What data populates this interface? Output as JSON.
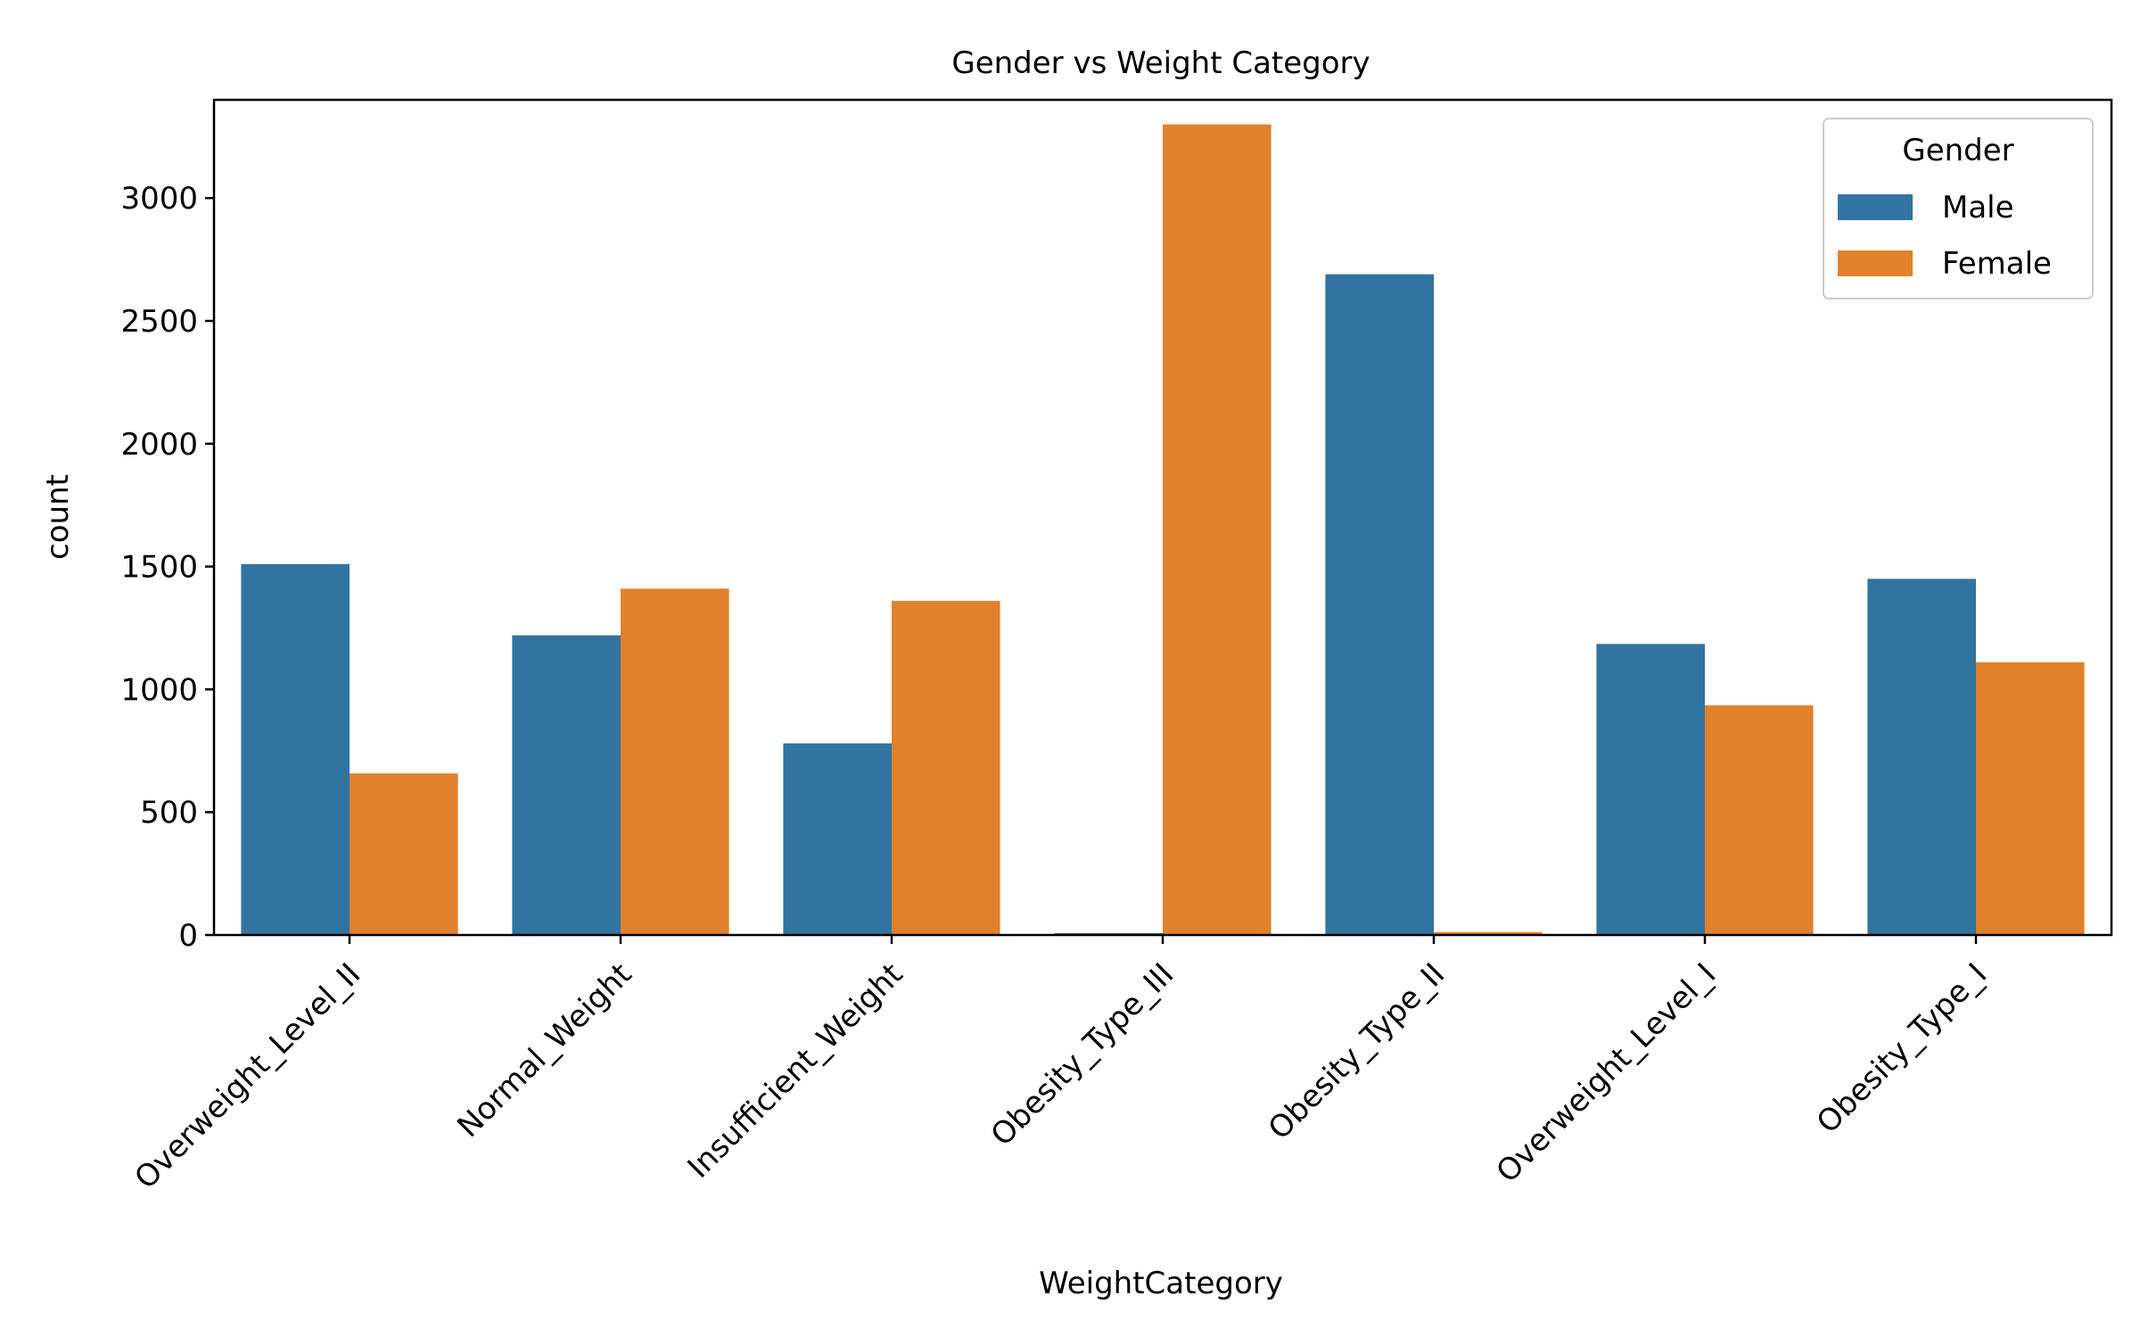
{
  "chart_data": {
    "type": "bar",
    "title": "Gender vs Weight Category",
    "xlabel": "WeightCategory",
    "ylabel": "count",
    "categories": [
      "Overweight_Level_II",
      "Normal_Weight",
      "Insufficient_Weight",
      "Obesity_Type_III",
      "Obesity_Type_II",
      "Overweight_Level_I",
      "Obesity_Type_I"
    ],
    "series": [
      {
        "name": "Male",
        "color": "#3274a1",
        "values": [
          1510,
          1220,
          780,
          8,
          2690,
          1185,
          1450
        ]
      },
      {
        "name": "Female",
        "color": "#e1812c",
        "values": [
          658,
          1410,
          1360,
          3300,
          12,
          935,
          1110
        ]
      }
    ],
    "ylim": [
      0,
      3400
    ],
    "yticks": [
      0,
      500,
      1000,
      1500,
      2000,
      2500,
      3000
    ],
    "legend": {
      "title": "Gender",
      "placement": "top-right"
    },
    "grid": false
  }
}
